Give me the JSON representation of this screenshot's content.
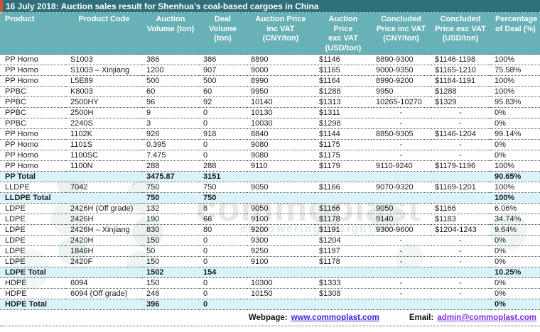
{
  "title": "16 July 2018: Auction sales result for Shenhua’s coal-based cargoes in China",
  "colors": {
    "title_bar": "#30707a",
    "accent_stripe": "#d24e35",
    "header_row": "#68b1b7",
    "total_row": "#daf3f8",
    "webpage_link": "#3a1ee0",
    "email_link": "#7a2be2"
  },
  "table": {
    "columns": [
      {
        "key": "product",
        "label": "Product",
        "align": "left"
      },
      {
        "key": "product-code",
        "label": "Product Code"
      },
      {
        "key": "auction-volume",
        "label": "Auction\nVolume (ton)"
      },
      {
        "key": "deal-volume",
        "label": "Deal\nVolume\n(ton)"
      },
      {
        "key": "auction-price-inc-vat",
        "label": "Auction Price\ninc VAT\n(CNY/ton)"
      },
      {
        "key": "auction-price-exc-vat",
        "label": "Auction\nPrice\nexc VAT\n(USD/ton)"
      },
      {
        "key": "concluded-price-inc-vat",
        "label": "Concluded\nPrice inc VAT\n(CNY/ton)"
      },
      {
        "key": "concluded-price-exc-vat",
        "label": "Concluded\nPrice exc VAT\n(USD/ton)"
      },
      {
        "key": "percentage-of-deal",
        "label": "Percentage\nof Deal (%)",
        "align": "left"
      }
    ],
    "rows": [
      {
        "product": "PP Homo",
        "code": "S1003",
        "auction_volume": "386",
        "deal_volume": "386",
        "auction_price_inc_vat": "8890",
        "auction_price_exc_vat": "$1146",
        "concluded_price_inc_vat": "8890-9300",
        "concluded_price_exc_vat": "$1146-1198",
        "percentage_of_deal": "100%"
      },
      {
        "product": "PP Homo",
        "code": "S1003 – Xinjiang",
        "auction_volume": "1200",
        "deal_volume": "907",
        "auction_price_inc_vat": "9000",
        "auction_price_exc_vat": "$1165",
        "concluded_price_inc_vat": "9000-9350",
        "concluded_price_exc_vat": "$1165-1210",
        "percentage_of_deal": "75.58%"
      },
      {
        "product": "PP Homo",
        "code": "L5E89",
        "auction_volume": "500",
        "deal_volume": "500",
        "auction_price_inc_vat": "8990",
        "auction_price_exc_vat": "$1164",
        "concluded_price_inc_vat": "8990-9200",
        "concluded_price_exc_vat": "$1164-1191",
        "percentage_of_deal": "100%"
      },
      {
        "product": "PPBC",
        "code": "K8003",
        "auction_volume": "60",
        "deal_volume": "60",
        "auction_price_inc_vat": "9950",
        "auction_price_exc_vat": "$1288",
        "concluded_price_inc_vat": "9950",
        "concluded_price_exc_vat": "$1288",
        "percentage_of_deal": "100%"
      },
      {
        "product": "PPBC",
        "code": "2500HY",
        "auction_volume": "96",
        "deal_volume": "92",
        "auction_price_inc_vat": "10140",
        "auction_price_exc_vat": "$1313",
        "concluded_price_inc_vat": "10265-10270",
        "concluded_price_exc_vat": "$1329",
        "percentage_of_deal": "95.83%"
      },
      {
        "product": "PPBC",
        "code": "2500H",
        "auction_volume": "9",
        "deal_volume": "0",
        "auction_price_inc_vat": "10130",
        "auction_price_exc_vat": "$1311",
        "concluded_price_inc_vat": "-",
        "concluded_price_exc_vat": "-",
        "percentage_of_deal": "0%"
      },
      {
        "product": "PPBC",
        "code": "2240S",
        "auction_volume": "3",
        "deal_volume": "0",
        "auction_price_inc_vat": "10030",
        "auction_price_exc_vat": "$1298",
        "concluded_price_inc_vat": "-",
        "concluded_price_exc_vat": "-",
        "percentage_of_deal": "0%"
      },
      {
        "product": "PP Homo",
        "code": "1102K",
        "auction_volume": "926",
        "deal_volume": "918",
        "auction_price_inc_vat": "8840",
        "auction_price_exc_vat": "$1144",
        "concluded_price_inc_vat": "8850-9305",
        "concluded_price_exc_vat": "$1146-1204",
        "percentage_of_deal": "99.14%"
      },
      {
        "product": "PP Homo",
        "code": "1101S",
        "auction_volume": "0.395",
        "deal_volume": "0",
        "auction_price_inc_vat": "9080",
        "auction_price_exc_vat": "$1175",
        "concluded_price_inc_vat": "-",
        "concluded_price_exc_vat": "-",
        "percentage_of_deal": "0%"
      },
      {
        "product": "PP Homo",
        "code": "1100SC",
        "auction_volume": "7.475",
        "deal_volume": "0",
        "auction_price_inc_vat": "9080",
        "auction_price_exc_vat": "$1175",
        "concluded_price_inc_vat": "-",
        "concluded_price_exc_vat": "-",
        "percentage_of_deal": "0%"
      },
      {
        "product": "PP Homo",
        "code": "1100N",
        "auction_volume": "288",
        "deal_volume": "288",
        "auction_price_inc_vat": "9110",
        "auction_price_exc_vat": "$1179",
        "concluded_price_inc_vat": "9110-9240",
        "concluded_price_exc_vat": "$1179-1196",
        "percentage_of_deal": "100%"
      },
      {
        "product": "PP Total",
        "code": "",
        "auction_volume": "3475.87",
        "deal_volume": "3151",
        "auction_price_inc_vat": "",
        "auction_price_exc_vat": "",
        "concluded_price_inc_vat": "",
        "concluded_price_exc_vat": "",
        "percentage_of_deal": "90.65%",
        "total": true
      },
      {
        "product": "LLDPE",
        "code": "7042",
        "note": "`",
        "auction_volume": "750",
        "deal_volume": "750",
        "auction_price_inc_vat": "9050",
        "auction_price_exc_vat": "$1166",
        "concluded_price_inc_vat": "9070-9320",
        "concluded_price_exc_vat": "$1169-1201",
        "percentage_of_deal": "100%"
      },
      {
        "product": "LLDPE Total",
        "code": "",
        "auction_volume": "750",
        "deal_volume": "750",
        "auction_price_inc_vat": "",
        "auction_price_exc_vat": "",
        "concluded_price_inc_vat": "",
        "concluded_price_exc_vat": "",
        "percentage_of_deal": "100%",
        "total": true
      },
      {
        "product": "LDPE",
        "code": "2426H (Off grade)",
        "auction_volume": "132",
        "deal_volume": "8",
        "auction_price_inc_vat": "9050",
        "auction_price_exc_vat": "$1166",
        "concluded_price_inc_vat": "9050",
        "concluded_price_exc_vat": "$1166",
        "percentage_of_deal": "6.06%"
      },
      {
        "product": "LDPE",
        "code": "2426H",
        "auction_volume": "190",
        "deal_volume": "66",
        "auction_price_inc_vat": "9100",
        "auction_price_exc_vat": "$1178",
        "concluded_price_inc_vat": "9140",
        "concluded_price_exc_vat": "$1183",
        "percentage_of_deal": "34.74%"
      },
      {
        "product": "LDPE",
        "code": "2426H – Xinjiang",
        "auction_volume": "830",
        "deal_volume": "80",
        "auction_price_inc_vat": "9200",
        "auction_price_exc_vat": "$1191",
        "concluded_price_inc_vat": "9300-9600",
        "concluded_price_exc_vat": "$1204-1243",
        "percentage_of_deal": "9.64%"
      },
      {
        "product": "LDPE",
        "code": "2420H",
        "auction_volume": "150",
        "deal_volume": "0",
        "auction_price_inc_vat": "9300",
        "auction_price_exc_vat": "$1204",
        "concluded_price_inc_vat": "-",
        "concluded_price_exc_vat": "-",
        "percentage_of_deal": "0%"
      },
      {
        "product": "LDPE",
        "code": "1846H",
        "auction_volume": "50",
        "deal_volume": "0",
        "auction_price_inc_vat": "9250",
        "auction_price_exc_vat": "$1197",
        "concluded_price_inc_vat": "-",
        "concluded_price_exc_vat": "-",
        "percentage_of_deal": "0%"
      },
      {
        "product": "LDPE",
        "code": "2420F",
        "auction_volume": "150",
        "deal_volume": "0",
        "auction_price_inc_vat": "9100",
        "auction_price_exc_vat": "$1178",
        "concluded_price_inc_vat": "-",
        "concluded_price_exc_vat": "-",
        "percentage_of_deal": "0%"
      },
      {
        "product": "LDPE Total",
        "code": "",
        "auction_volume": "1502",
        "deal_volume": "154",
        "auction_price_inc_vat": "",
        "auction_price_exc_vat": "",
        "concluded_price_inc_vat": "",
        "concluded_price_exc_vat": "",
        "percentage_of_deal": "10.25%",
        "total": true
      },
      {
        "product": "HDPE",
        "code": "6094",
        "auction_volume": "150",
        "deal_volume": "0",
        "auction_price_inc_vat": "10300",
        "auction_price_exc_vat": "$1333",
        "concluded_price_inc_vat": "-",
        "concluded_price_exc_vat": "-",
        "percentage_of_deal": "0%"
      },
      {
        "product": "HDPE",
        "code": "6094 (Off grade)",
        "auction_volume": "246",
        "deal_volume": "0",
        "auction_price_inc_vat": "10150",
        "auction_price_exc_vat": "$1308",
        "concluded_price_inc_vat": "-",
        "concluded_price_exc_vat": "-",
        "percentage_of_deal": "0%"
      },
      {
        "product": "HDPE Total",
        "code": "",
        "auction_volume": "396",
        "deal_volume": "0",
        "auction_price_inc_vat": "",
        "auction_price_exc_vat": "",
        "concluded_price_inc_vat": "",
        "concluded_price_exc_vat": "",
        "percentage_of_deal": "0%",
        "total": true
      }
    ]
  },
  "watermark": {
    "line1": "commoplast",
    "line2": "empowering insights"
  },
  "footer": {
    "webpage_label": "Webpage:",
    "webpage_url": "www.commoplast.com",
    "email_label": "Email:",
    "email_address": "admin@commoplast.com"
  }
}
